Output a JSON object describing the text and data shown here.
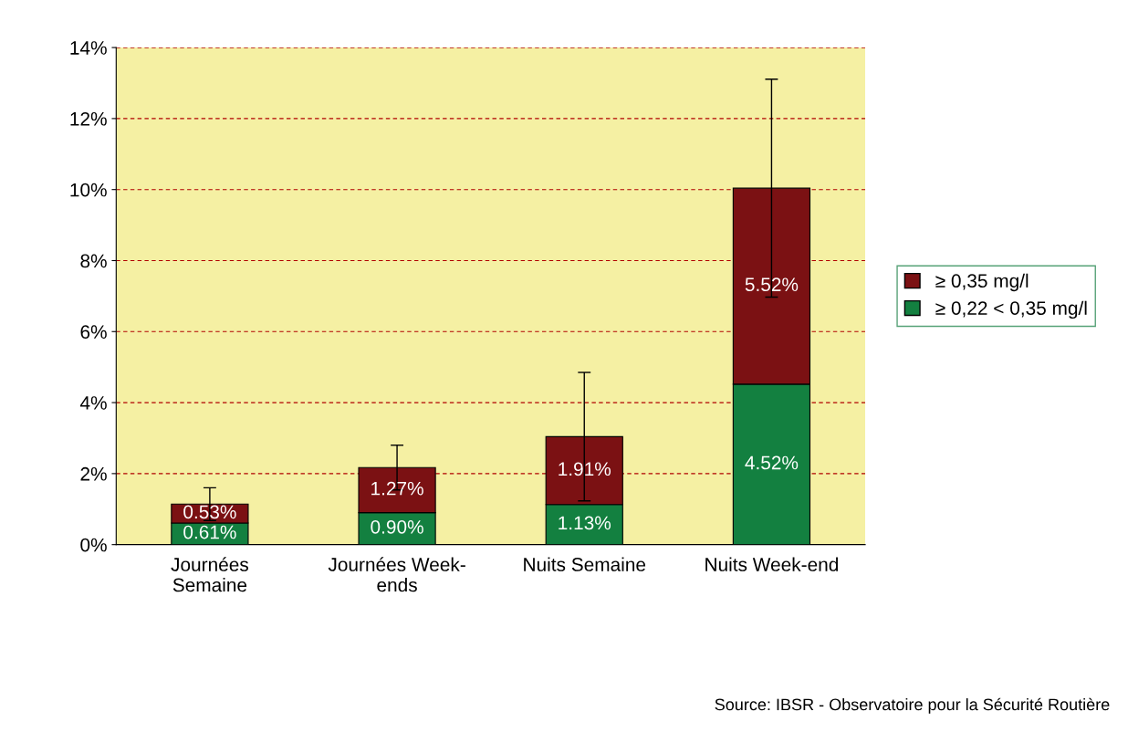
{
  "chart_data": {
    "type": "bar",
    "stacked": true,
    "categories": [
      "Journées\nSemaine",
      "Journées Week-\nends",
      "Nuits Semaine",
      "Nuits Week-end"
    ],
    "series": [
      {
        "name": "≥ 0,22 < 0,35 mg/l",
        "color": "#138040",
        "values": [
          0.61,
          0.9,
          1.13,
          4.52
        ],
        "value_labels": [
          "0.61%",
          "0.90%",
          "1.13%",
          "4.52%"
        ]
      },
      {
        "name": "≥ 0,35 mg/l",
        "color": "#7b1113",
        "values": [
          0.53,
          1.27,
          1.91,
          5.52
        ],
        "value_labels": [
          "0.53%",
          "1.27%",
          "1.91%",
          "5.52%"
        ],
        "errors": [
          0.46,
          0.63,
          1.81,
          3.07
        ]
      }
    ],
    "ylim": [
      0,
      14
    ],
    "yticks": [
      {
        "value": 0,
        "label": "0%"
      },
      {
        "value": 2,
        "label": "2%"
      },
      {
        "value": 4,
        "label": "4%"
      },
      {
        "value": 6,
        "label": "6%"
      },
      {
        "value": 8,
        "label": "8%"
      },
      {
        "value": 10,
        "label": "10%"
      },
      {
        "value": 12,
        "label": "12%"
      },
      {
        "value": 14,
        "label": "14%"
      }
    ],
    "grid": "y",
    "legend": "right",
    "annotations": [
      "Source: IBSR - Observatoire pour la Sécurité Routière"
    ]
  }
}
